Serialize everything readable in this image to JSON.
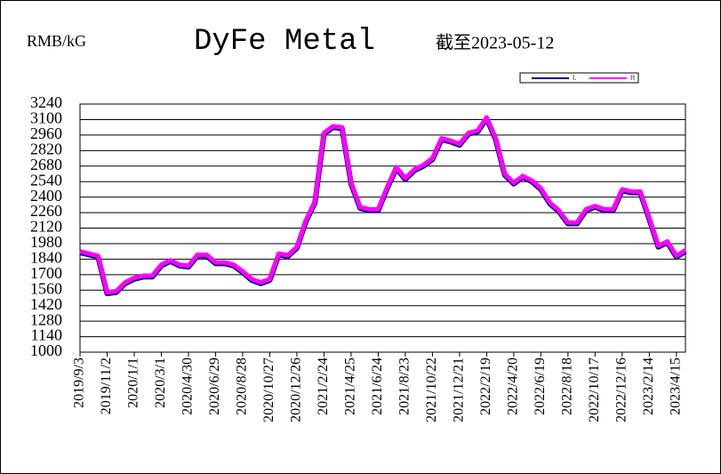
{
  "chart_data": {
    "type": "line",
    "title": "DyFe Metal",
    "unit_label": "RMB/kG",
    "date_note": "截至2023-05-12",
    "categories": [
      "2019/9/3",
      null,
      null,
      "2019/11/2",
      null,
      null,
      "2020/1/1",
      null,
      null,
      "2020/3/1",
      null,
      null,
      "2020/4/30",
      null,
      null,
      "2020/6/29",
      null,
      null,
      "2020/8/28",
      null,
      null,
      "2020/10/27",
      null,
      null,
      "2020/12/26",
      null,
      null,
      "2021/2/24",
      null,
      null,
      "2021/4/25",
      null,
      null,
      "2021/6/24",
      null,
      null,
      "2021/8/23",
      null,
      null,
      "2021/10/22",
      null,
      null,
      "2021/12/21",
      null,
      null,
      "2022/2/19",
      null,
      null,
      "2022/4/20",
      null,
      null,
      "2022/6/19",
      null,
      null,
      "2022/8/18",
      null,
      null,
      "2022/10/17",
      null,
      null,
      "2022/12/16",
      null,
      null,
      "2023/2/14",
      null,
      null,
      "2023/4/15",
      null
    ],
    "series": [
      {
        "name": "L",
        "color": "#000080",
        "values": [
          1900,
          1880,
          1860,
          1530,
          1540,
          1620,
          1660,
          1680,
          1680,
          1780,
          1820,
          1780,
          1770,
          1870,
          1870,
          1800,
          1800,
          1780,
          1720,
          1650,
          1620,
          1650,
          1880,
          1865,
          1940,
          2180,
          2350,
          2970,
          3030,
          3020,
          2520,
          2300,
          2280,
          2280,
          2480,
          2660,
          2560,
          2640,
          2680,
          2740,
          2920,
          2900,
          2870,
          2970,
          2990,
          3110,
          2920,
          2600,
          2520,
          2580,
          2540,
          2470,
          2340,
          2270,
          2160,
          2160,
          2280,
          2310,
          2280,
          2280,
          2460,
          2440,
          2440,
          2200,
          1950,
          1990,
          1860,
          1910
        ]
      },
      {
        "name": "H",
        "color": "#ff00ff",
        "values": [
          1910,
          1890,
          1870,
          1540,
          1550,
          1630,
          1670,
          1690,
          1690,
          1790,
          1830,
          1790,
          1780,
          1880,
          1880,
          1810,
          1810,
          1790,
          1730,
          1660,
          1630,
          1660,
          1890,
          1875,
          1950,
          2190,
          2360,
          2980,
          3040,
          3030,
          2530,
          2310,
          2290,
          2290,
          2490,
          2670,
          2570,
          2650,
          2690,
          2750,
          2930,
          2910,
          2880,
          2980,
          3000,
          3120,
          2930,
          2610,
          2530,
          2590,
          2550,
          2480,
          2350,
          2280,
          2170,
          2170,
          2290,
          2320,
          2290,
          2290,
          2470,
          2450,
          2450,
          2210,
          1960,
          2000,
          1870,
          1920
        ]
      }
    ],
    "ylim": [
      1000,
      3240
    ],
    "yticks": [
      1000,
      1140,
      1280,
      1420,
      1560,
      1700,
      1840,
      1980,
      2120,
      2260,
      2400,
      2540,
      2680,
      2820,
      2960,
      3100,
      3240
    ],
    "grid": true
  }
}
